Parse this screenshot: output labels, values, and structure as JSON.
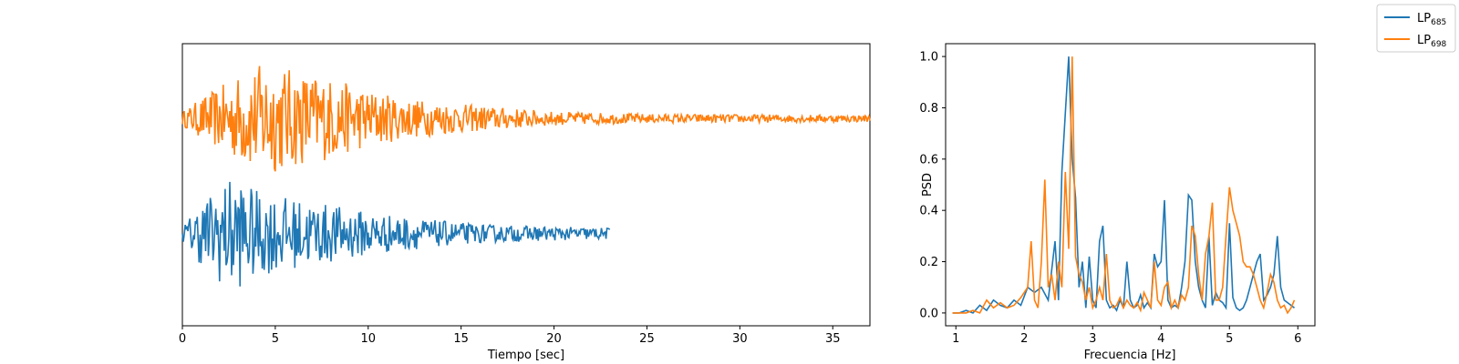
{
  "legend": {
    "entries": [
      {
        "base": "LP",
        "sub": "685",
        "color": "#1f77b4"
      },
      {
        "base": "LP",
        "sub": "698",
        "color": "#ff7f0e"
      }
    ]
  },
  "chart_data": [
    {
      "type": "line",
      "xlabel": "Tiempo [sec]",
      "ylabel": "",
      "xlim": [
        0,
        37
      ],
      "xticks": [
        0,
        5,
        10,
        15,
        20,
        25,
        30,
        35
      ],
      "yticks": "none",
      "grid": false,
      "series": [
        {
          "color": "#ff7f0e",
          "offset": 1.0,
          "duration": 37.0,
          "step": 0.05,
          "amplitude": [
            [
              0,
              0.12
            ],
            [
              1,
              0.35
            ],
            [
              2,
              0.55
            ],
            [
              3.5,
              0.85
            ],
            [
              4.5,
              1.0
            ],
            [
              6,
              0.85
            ],
            [
              8,
              0.7
            ],
            [
              10,
              0.5
            ],
            [
              12,
              0.35
            ],
            [
              15,
              0.25
            ],
            [
              20,
              0.12
            ],
            [
              25,
              0.08
            ],
            [
              37,
              0.06
            ]
          ]
        },
        {
          "color": "#1f77b4",
          "offset": -1.0,
          "duration": 23.0,
          "step": 0.05,
          "amplitude": [
            [
              0,
              0.12
            ],
            [
              1,
              0.55
            ],
            [
              2,
              0.85
            ],
            [
              2.8,
              1.0
            ],
            [
              4,
              0.75
            ],
            [
              6,
              0.6
            ],
            [
              8,
              0.5
            ],
            [
              10,
              0.38
            ],
            [
              13,
              0.25
            ],
            [
              16,
              0.16
            ],
            [
              20,
              0.12
            ],
            [
              23,
              0.1
            ]
          ]
        }
      ]
    },
    {
      "type": "line",
      "xlabel": "Frecuencia [Hz]",
      "ylabel": "PSD",
      "xlim": [
        0.85,
        6.25
      ],
      "ylim": [
        -0.05,
        1.05
      ],
      "xticks": [
        1,
        2,
        3,
        4,
        5,
        6
      ],
      "yticks": [
        0.0,
        0.2,
        0.4,
        0.6,
        0.8,
        1.0
      ],
      "grid": false,
      "series": [
        {
          "color": "#1f77b4",
          "x": [
            0.95,
            1.05,
            1.15,
            1.25,
            1.35,
            1.45,
            1.55,
            1.65,
            1.75,
            1.85,
            1.95,
            2.05,
            2.15,
            2.25,
            2.35,
            2.45,
            2.5,
            2.55,
            2.6,
            2.65,
            2.7,
            2.75,
            2.8,
            2.85,
            2.9,
            2.95,
            3.0,
            3.05,
            3.1,
            3.15,
            3.2,
            3.25,
            3.3,
            3.35,
            3.4,
            3.45,
            3.5,
            3.55,
            3.6,
            3.65,
            3.7,
            3.75,
            3.8,
            3.85,
            3.9,
            3.95,
            4.0,
            4.05,
            4.1,
            4.15,
            4.2,
            4.25,
            4.3,
            4.35,
            4.4,
            4.45,
            4.5,
            4.55,
            4.6,
            4.65,
            4.7,
            4.75,
            4.8,
            4.85,
            4.9,
            4.95,
            5.0,
            5.05,
            5.1,
            5.15,
            5.2,
            5.25,
            5.3,
            5.35,
            5.4,
            5.45,
            5.5,
            5.55,
            5.6,
            5.65,
            5.7,
            5.75,
            5.8,
            5.85,
            5.9,
            5.95
          ],
          "y": [
            0.0,
            0.0,
            0.01,
            0.0,
            0.03,
            0.01,
            0.05,
            0.03,
            0.02,
            0.05,
            0.03,
            0.1,
            0.08,
            0.1,
            0.05,
            0.28,
            0.05,
            0.55,
            0.78,
            1.0,
            0.6,
            0.45,
            0.1,
            0.2,
            0.02,
            0.22,
            0.05,
            0.02,
            0.28,
            0.34,
            0.05,
            0.02,
            0.03,
            0.01,
            0.05,
            0.02,
            0.2,
            0.05,
            0.02,
            0.03,
            0.07,
            0.02,
            0.04,
            0.02,
            0.23,
            0.18,
            0.2,
            0.44,
            0.05,
            0.02,
            0.03,
            0.02,
            0.1,
            0.2,
            0.46,
            0.44,
            0.2,
            0.1,
            0.05,
            0.02,
            0.3,
            0.03,
            0.08,
            0.05,
            0.04,
            0.02,
            0.35,
            0.06,
            0.02,
            0.01,
            0.02,
            0.05,
            0.1,
            0.15,
            0.2,
            0.23,
            0.05,
            0.07,
            0.1,
            0.15,
            0.3,
            0.1,
            0.05,
            0.04,
            0.03,
            0.02
          ]
        },
        {
          "color": "#ff7f0e",
          "x": [
            0.95,
            1.05,
            1.15,
            1.25,
            1.35,
            1.45,
            1.55,
            1.65,
            1.75,
            1.85,
            1.95,
            2.05,
            2.1,
            2.15,
            2.2,
            2.25,
            2.3,
            2.35,
            2.4,
            2.45,
            2.5,
            2.55,
            2.6,
            2.65,
            2.7,
            2.75,
            2.8,
            2.85,
            2.9,
            2.95,
            3.0,
            3.05,
            3.1,
            3.15,
            3.2,
            3.25,
            3.3,
            3.35,
            3.4,
            3.45,
            3.5,
            3.55,
            3.6,
            3.65,
            3.7,
            3.75,
            3.8,
            3.85,
            3.9,
            3.95,
            4.0,
            4.05,
            4.1,
            4.15,
            4.2,
            4.25,
            4.3,
            4.35,
            4.4,
            4.45,
            4.5,
            4.55,
            4.6,
            4.65,
            4.7,
            4.75,
            4.8,
            4.85,
            4.9,
            4.95,
            5.0,
            5.05,
            5.1,
            5.15,
            5.2,
            5.25,
            5.3,
            5.35,
            5.4,
            5.45,
            5.5,
            5.55,
            5.6,
            5.65,
            5.7,
            5.75,
            5.8,
            5.85,
            5.9,
            5.95
          ],
          "y": [
            0.0,
            0.0,
            0.0,
            0.01,
            0.0,
            0.05,
            0.02,
            0.04,
            0.02,
            0.03,
            0.06,
            0.1,
            0.28,
            0.05,
            0.02,
            0.2,
            0.52,
            0.1,
            0.15,
            0.05,
            0.2,
            0.1,
            0.55,
            0.25,
            1.0,
            0.22,
            0.15,
            0.12,
            0.05,
            0.1,
            0.02,
            0.05,
            0.1,
            0.05,
            0.23,
            0.05,
            0.02,
            0.03,
            0.06,
            0.02,
            0.05,
            0.03,
            0.02,
            0.04,
            0.01,
            0.08,
            0.05,
            0.02,
            0.2,
            0.05,
            0.03,
            0.1,
            0.12,
            0.02,
            0.05,
            0.02,
            0.07,
            0.05,
            0.1,
            0.34,
            0.3,
            0.15,
            0.05,
            0.23,
            0.3,
            0.43,
            0.05,
            0.05,
            0.1,
            0.3,
            0.49,
            0.4,
            0.35,
            0.3,
            0.2,
            0.18,
            0.18,
            0.15,
            0.1,
            0.05,
            0.02,
            0.08,
            0.15,
            0.12,
            0.05,
            0.02,
            0.03,
            0.0,
            0.02,
            0.05
          ]
        }
      ]
    }
  ]
}
